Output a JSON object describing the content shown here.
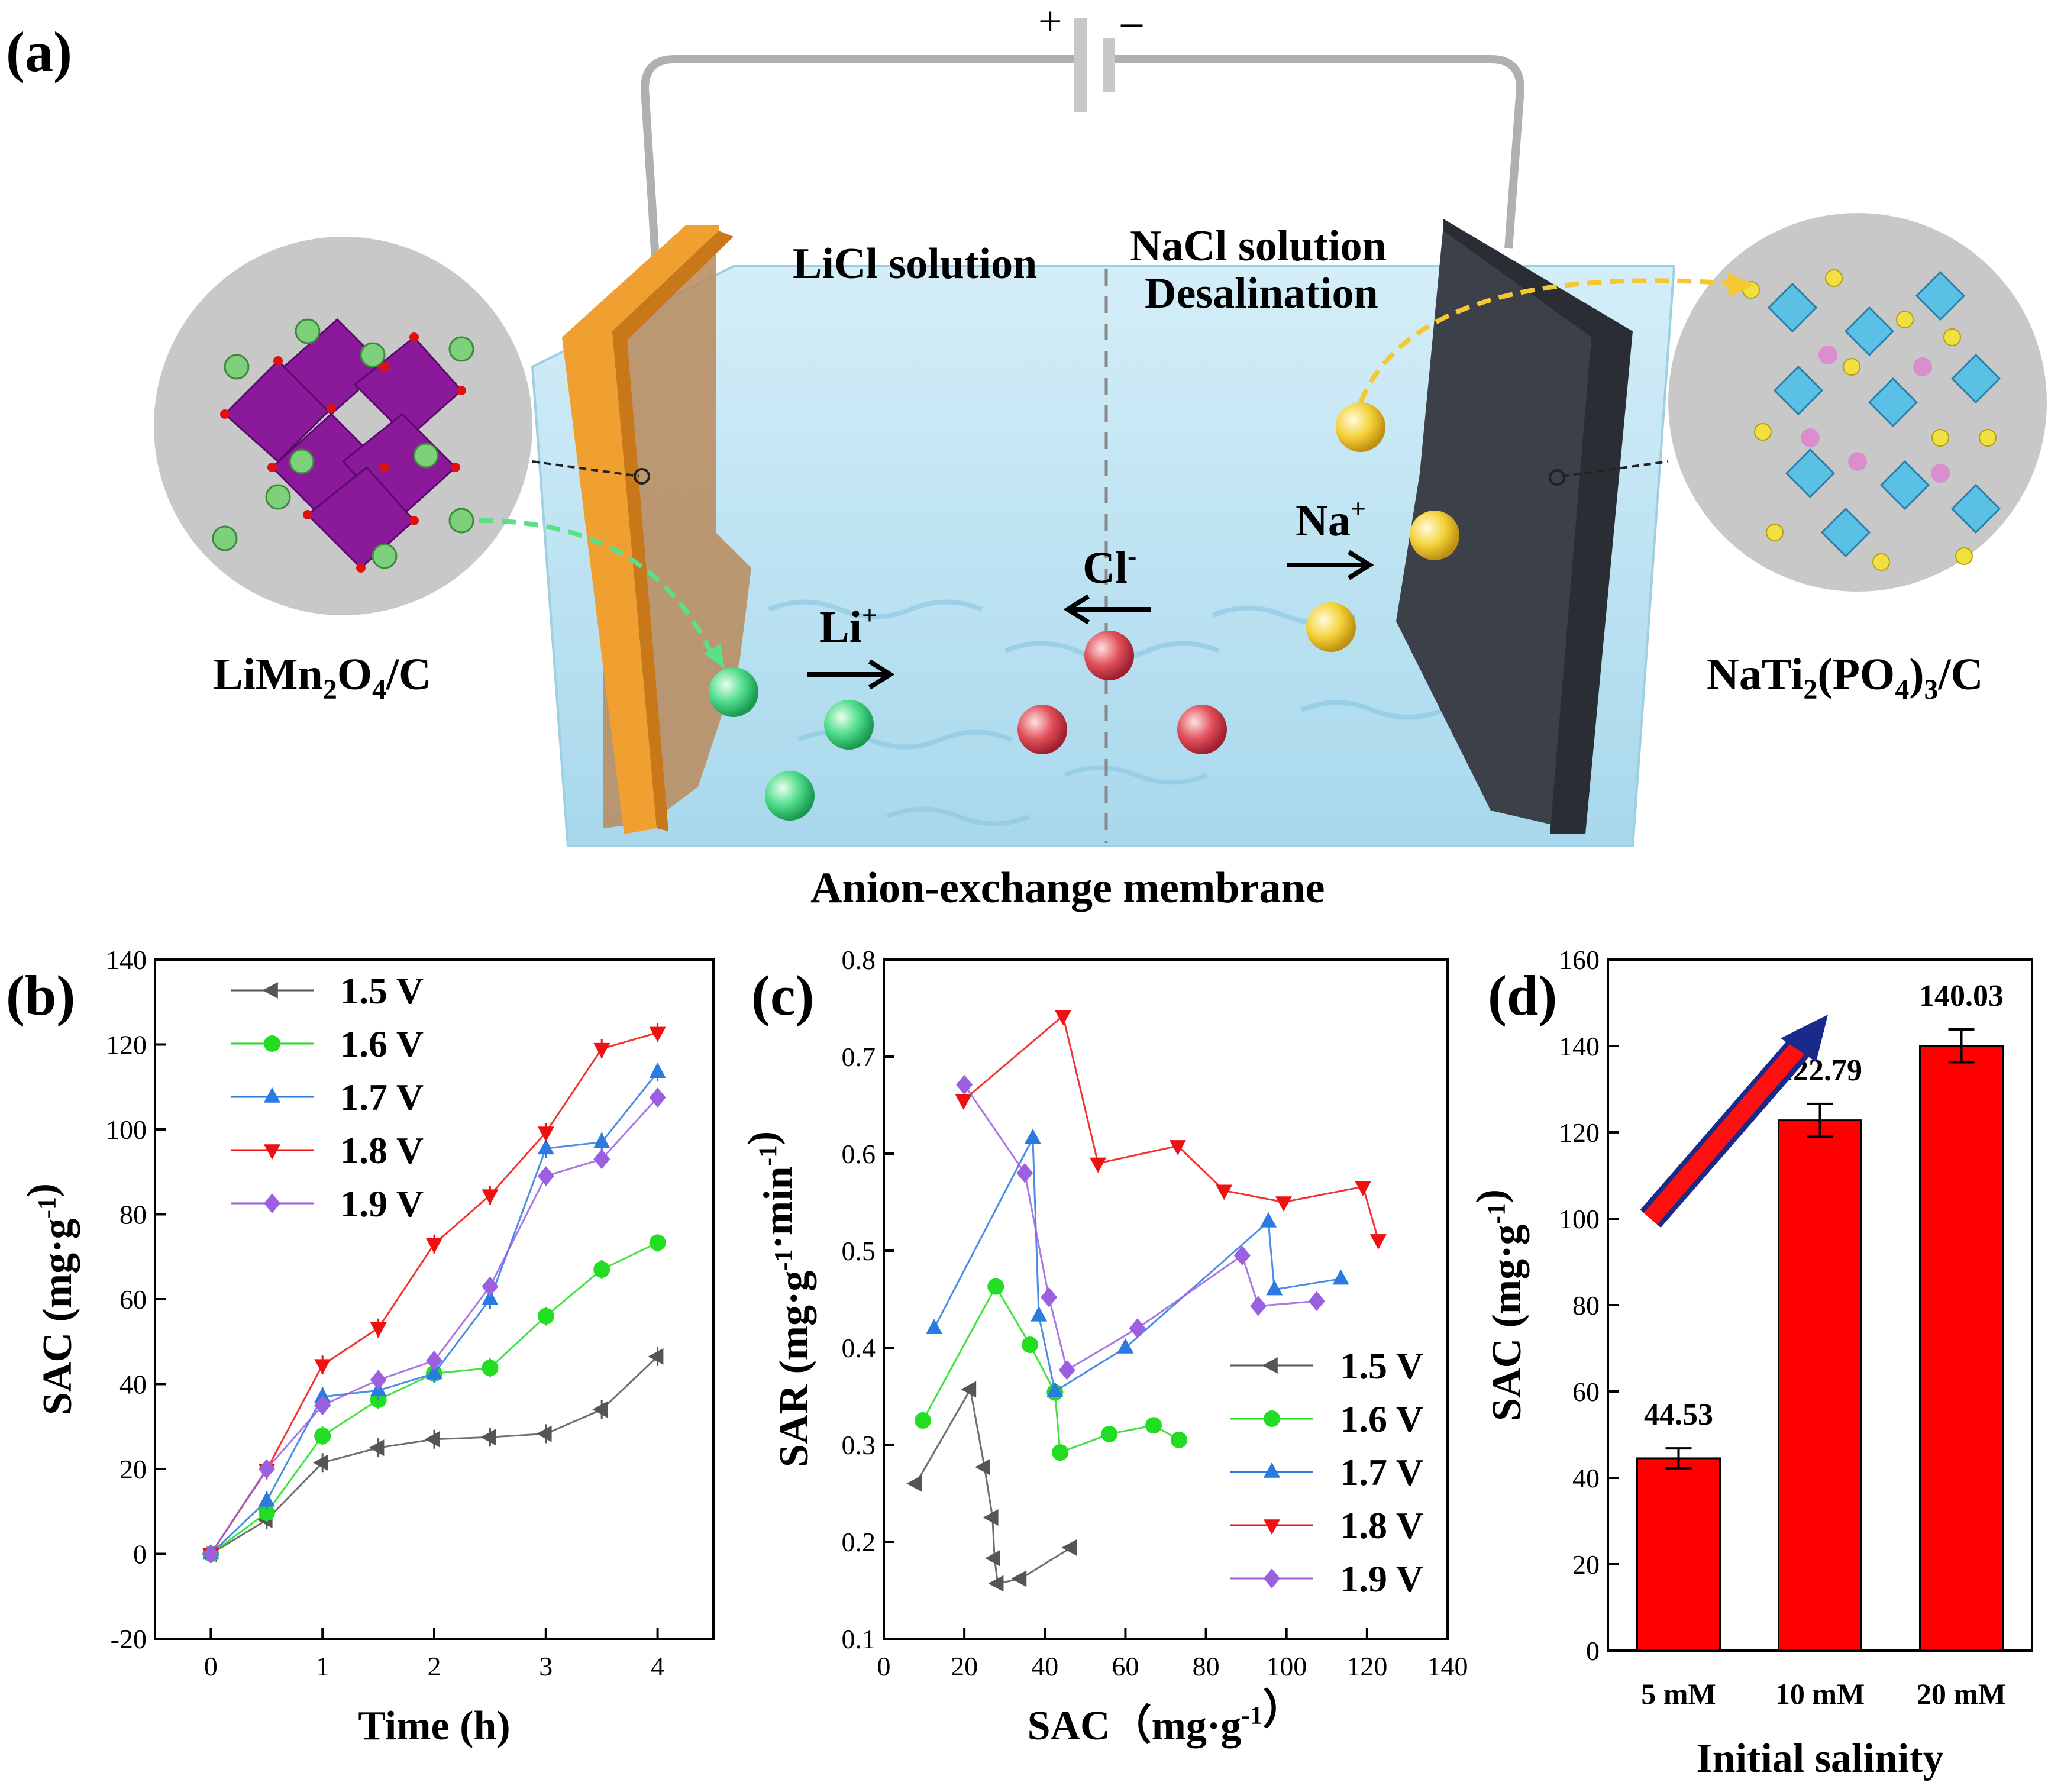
{
  "schematic": {
    "panel_label": "(a)",
    "battery_plus": "+",
    "battery_minus": "–",
    "left_solution": "LiCl solution",
    "right_solution_line1": "NaCl solution",
    "right_solution_line2": "Desalination",
    "membrane_label": "Anion-exchange membrane",
    "left_material": "LiMn₂O₄/C",
    "right_material": "NaTi₂(PO₄)₃/C",
    "li_ion": "Li⁺",
    "na_ion": "Na⁺",
    "cl_ion": "Cl⁻",
    "colors": {
      "water": "#bfe2f0",
      "left_electrode": "#f0a030",
      "right_electrode": "#4a5058",
      "li": "#4fdc8a",
      "na": "#f5d23a",
      "cl": "#e0505a",
      "membrane": "#888888"
    }
  },
  "chart_data": [
    {
      "panel": "(b)",
      "type": "line",
      "xlabel": "Time (h)",
      "ylabel": "SAC (mg·g⁻¹)",
      "xlim": [
        -0.5,
        4.5
      ],
      "ylim": [
        -20,
        140
      ],
      "xticks": [
        0,
        1,
        2,
        3,
        4
      ],
      "yticks": [
        -20,
        0,
        20,
        40,
        60,
        80,
        100,
        120,
        140
      ],
      "legend": "top-left",
      "series": [
        {
          "name": "1.5 V",
          "color": "#555555",
          "marker": "tri-left",
          "x": [
            0,
            0.5,
            1,
            1.5,
            2,
            2.5,
            3,
            3.5,
            4
          ],
          "y": [
            0,
            8,
            21.5,
            25,
            27,
            27.5,
            28.3,
            34,
            46.5
          ]
        },
        {
          "name": "1.6 V",
          "color": "#22dd22",
          "marker": "circle",
          "x": [
            0,
            0.5,
            1,
            1.5,
            2,
            2.5,
            3,
            3.5,
            4
          ],
          "y": [
            0,
            9.7,
            27.8,
            36.3,
            42.5,
            43.8,
            56,
            67,
            73.3
          ]
        },
        {
          "name": "1.7 V",
          "color": "#2a7ae0",
          "marker": "tri-up",
          "x": [
            0,
            0.5,
            1,
            1.5,
            2,
            2.5,
            3,
            3.5,
            4
          ],
          "y": [
            0,
            12.5,
            37,
            38.5,
            42.5,
            60,
            95.5,
            97,
            113.5
          ]
        },
        {
          "name": "1.8 V",
          "color": "#ee1111",
          "marker": "tri-down",
          "x": [
            0,
            0.5,
            1,
            1.5,
            2,
            2.5,
            3,
            3.5,
            4
          ],
          "y": [
            0,
            19.8,
            44.5,
            53.2,
            73,
            84.5,
            99.3,
            119,
            122.8
          ]
        },
        {
          "name": "1.9 V",
          "color": "#9b5fe0",
          "marker": "diamond",
          "x": [
            0,
            0.5,
            1,
            1.5,
            2,
            2.5,
            3,
            3.5,
            4
          ],
          "y": [
            0,
            20,
            35,
            41,
            45.5,
            63,
            89,
            93,
            107.5
          ]
        }
      ]
    },
    {
      "panel": "(c)",
      "type": "line",
      "xlabel": "SAC（mg·g⁻¹）",
      "ylabel": "SAR (mg·g⁻¹·min⁻¹)",
      "xlim": [
        0,
        140
      ],
      "ylim": [
        0.1,
        0.8
      ],
      "xticks": [
        0,
        20,
        40,
        60,
        80,
        100,
        120,
        140
      ],
      "yticks": [
        0.1,
        0.2,
        0.3,
        0.4,
        0.5,
        0.6,
        0.7,
        0.8
      ],
      "legend": "bottom-right",
      "series": [
        {
          "name": "1.5 V",
          "color": "#555555",
          "marker": "tri-left",
          "x": [
            8,
            21.5,
            25,
            27,
            27.5,
            28.3,
            34,
            46.5
          ],
          "y": [
            0.26,
            0.357,
            0.277,
            0.225,
            0.183,
            0.157,
            0.162,
            0.194
          ]
        },
        {
          "name": "1.6 V",
          "color": "#22dd22",
          "marker": "circle",
          "x": [
            9.7,
            27.8,
            36.3,
            42.5,
            43.8,
            56,
            67,
            73.3
          ],
          "y": [
            0.325,
            0.463,
            0.403,
            0.354,
            0.292,
            0.311,
            0.32,
            0.305
          ]
        },
        {
          "name": "1.7 V",
          "color": "#2a7ae0",
          "marker": "tri-up",
          "x": [
            12.5,
            37,
            38.5,
            42.5,
            60,
            95.5,
            97,
            113.5
          ],
          "y": [
            0.42,
            0.616,
            0.433,
            0.355,
            0.4,
            0.53,
            0.46,
            0.471
          ]
        },
        {
          "name": "1.8 V",
          "color": "#ee1111",
          "marker": "tri-down",
          "x": [
            19.8,
            44.5,
            53.2,
            73,
            84.5,
            99.3,
            119,
            122.8
          ],
          "y": [
            0.655,
            0.742,
            0.59,
            0.608,
            0.562,
            0.55,
            0.566,
            0.511
          ]
        },
        {
          "name": "1.9 V",
          "color": "#9b5fe0",
          "marker": "diamond",
          "x": [
            20,
            35,
            41,
            45.5,
            63,
            89,
            93,
            107.5
          ],
          "y": [
            0.671,
            0.58,
            0.452,
            0.377,
            0.42,
            0.495,
            0.443,
            0.448
          ]
        }
      ]
    },
    {
      "panel": "(d)",
      "type": "bar",
      "xlabel": "Initial salinity",
      "ylabel": "SAC (mg·g⁻¹)",
      "ylim": [
        0,
        160
      ],
      "yticks": [
        0,
        20,
        40,
        60,
        80,
        100,
        120,
        140,
        160
      ],
      "categories": [
        "5 mM",
        "10 mM",
        "20 mM"
      ],
      "values": [
        44.53,
        122.79,
        140.03
      ],
      "value_labels": [
        "44.53",
        "122.79",
        "140.03"
      ],
      "errors": [
        2.3,
        3.8,
        3.8
      ],
      "color": "#ff0000"
    }
  ]
}
